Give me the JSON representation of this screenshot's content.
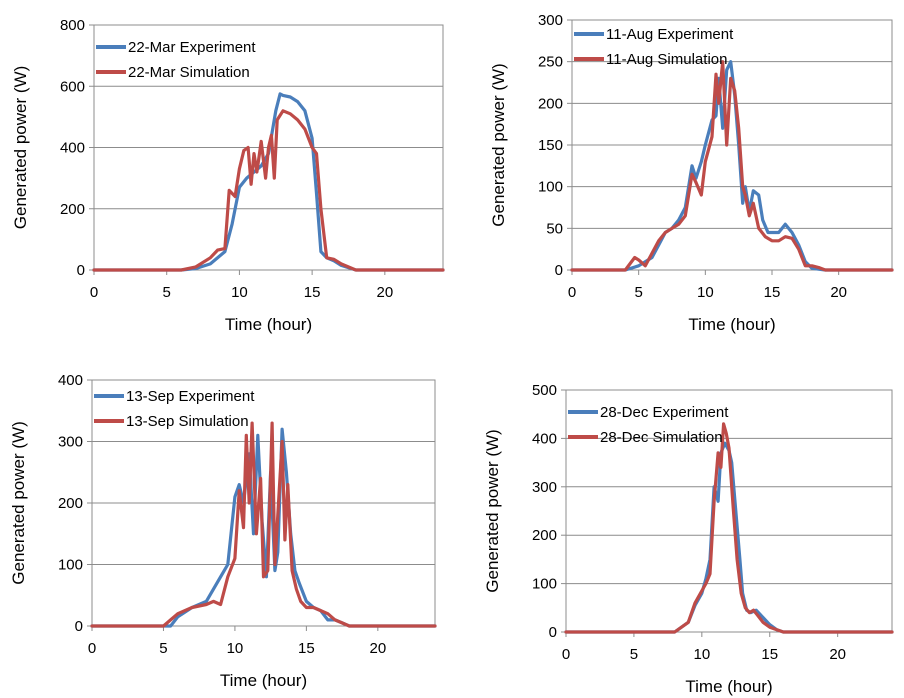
{
  "chart_data": [
    {
      "type": "line",
      "title": "",
      "xlabel": "Time (hour)",
      "ylabel": "Generated power (W)",
      "xlim": [
        0,
        24
      ],
      "ylim": [
        0,
        800
      ],
      "xticks": [
        0,
        5,
        10,
        15,
        20
      ],
      "yticks": [
        0,
        200,
        400,
        600,
        800
      ],
      "grid": "horizontal",
      "legend_position": "top-left",
      "series": [
        {
          "name": "22-Mar Experiment",
          "color": "#4a7ebb",
          "x": [
            0,
            6,
            7,
            8,
            9,
            9.5,
            10,
            10.5,
            11,
            11.5,
            12,
            12.5,
            12.8,
            13,
            13.5,
            14,
            14.5,
            15,
            15.3,
            15.6,
            16,
            16.5,
            17,
            18,
            19,
            24
          ],
          "y": [
            0,
            0,
            5,
            20,
            60,
            150,
            270,
            300,
            320,
            340,
            380,
            520,
            575,
            570,
            565,
            550,
            520,
            430,
            250,
            60,
            40,
            30,
            15,
            0,
            0,
            0
          ]
        },
        {
          "name": "22-Mar Simulation",
          "color": "#be4b48",
          "x": [
            0,
            6,
            7,
            8,
            8.5,
            9,
            9.3,
            9.7,
            10,
            10.3,
            10.6,
            10.8,
            11,
            11.2,
            11.5,
            11.8,
            12,
            12.2,
            12.4,
            12.6,
            13,
            13.5,
            14,
            14.5,
            15,
            15.3,
            15.6,
            16,
            16.5,
            17,
            18,
            19,
            24
          ],
          "y": [
            0,
            0,
            10,
            40,
            65,
            70,
            260,
            240,
            330,
            390,
            400,
            280,
            380,
            320,
            420,
            300,
            400,
            440,
            300,
            490,
            520,
            510,
            490,
            460,
            400,
            380,
            200,
            40,
            35,
            20,
            0,
            0,
            0
          ]
        }
      ]
    },
    {
      "type": "line",
      "title": "",
      "xlabel": "Time (hour)",
      "ylabel": "Generated power (W)",
      "xlim": [
        0,
        24
      ],
      "ylim": [
        0,
        300
      ],
      "xticks": [
        0,
        5,
        10,
        15,
        20
      ],
      "yticks": [
        0,
        50,
        100,
        150,
        200,
        250,
        300
      ],
      "grid": "horizontal",
      "legend_position": "top-left",
      "series": [
        {
          "name": "11-Aug Experiment",
          "color": "#4a7ebb",
          "x": [
            0,
            4,
            5,
            6,
            6.5,
            7,
            7.5,
            8,
            8.5,
            9,
            9.3,
            9.7,
            10,
            10.5,
            10.8,
            11,
            11.3,
            11.6,
            11.9,
            12.2,
            12.5,
            12.8,
            13,
            13.3,
            13.6,
            14,
            14.3,
            14.7,
            15,
            15.5,
            16,
            16.5,
            17,
            17.5,
            18,
            19,
            24
          ],
          "y": [
            0,
            0,
            5,
            15,
            30,
            45,
            50,
            60,
            75,
            125,
            110,
            130,
            150,
            180,
            185,
            230,
            170,
            240,
            250,
            210,
            150,
            80,
            100,
            70,
            95,
            90,
            60,
            45,
            45,
            45,
            55,
            45,
            30,
            10,
            2,
            0,
            0
          ]
        },
        {
          "name": "11-Aug Simulation",
          "color": "#be4b48",
          "x": [
            0,
            4,
            4.7,
            5,
            5.5,
            6,
            6.5,
            7,
            7.5,
            8,
            8.5,
            9,
            9.3,
            9.7,
            10,
            10.5,
            10.8,
            11,
            11.3,
            11.6,
            11.9,
            12.2,
            12.5,
            12.8,
            13,
            13.3,
            13.6,
            14,
            14.5,
            15,
            15.5,
            16,
            16.5,
            17,
            17.5,
            18,
            18.5,
            19,
            24
          ],
          "y": [
            0,
            0,
            15,
            12,
            5,
            20,
            35,
            45,
            50,
            55,
            65,
            115,
            105,
            90,
            130,
            160,
            235,
            200,
            250,
            150,
            230,
            215,
            170,
            100,
            90,
            65,
            80,
            50,
            40,
            35,
            35,
            40,
            38,
            25,
            5,
            5,
            3,
            0,
            0
          ]
        }
      ]
    },
    {
      "type": "line",
      "title": "",
      "xlabel": "Time (hour)",
      "ylabel": "Generated power (W)",
      "xlim": [
        0,
        24
      ],
      "ylim": [
        0,
        400
      ],
      "xticks": [
        0,
        5,
        10,
        15,
        20
      ],
      "yticks": [
        0,
        100,
        200,
        300,
        400
      ],
      "grid": "horizontal",
      "legend_position": "top-left",
      "series": [
        {
          "name": "13-Sep Experiment",
          "color": "#4a7ebb",
          "x": [
            0,
            5.5,
            6,
            7,
            8,
            9,
            9.5,
            10,
            10.3,
            10.6,
            11,
            11.3,
            11.6,
            11.9,
            12.2,
            12.5,
            12.8,
            13,
            13.3,
            13.6,
            13.9,
            14.2,
            14.5,
            15,
            15.5,
            16,
            16.5,
            17,
            17.5,
            18,
            24
          ],
          "y": [
            0,
            0,
            15,
            30,
            40,
            80,
            100,
            210,
            230,
            200,
            280,
            150,
            310,
            170,
            80,
            250,
            90,
            120,
            320,
            250,
            150,
            90,
            70,
            40,
            30,
            25,
            10,
            10,
            5,
            0,
            0
          ]
        },
        {
          "name": "13-Sep Simulation",
          "color": "#be4b48",
          "x": [
            0,
            5,
            5.5,
            6,
            7,
            8,
            8.5,
            9,
            9.5,
            10,
            10.3,
            10.6,
            10.8,
            11,
            11.2,
            11.5,
            11.8,
            12,
            12.3,
            12.6,
            12.8,
            13,
            13.3,
            13.5,
            13.7,
            14,
            14.3,
            14.6,
            15,
            15.5,
            16,
            16.5,
            17,
            17.5,
            18,
            24
          ],
          "y": [
            0,
            0,
            10,
            20,
            30,
            35,
            40,
            35,
            80,
            110,
            220,
            160,
            310,
            200,
            330,
            150,
            240,
            80,
            90,
            330,
            100,
            180,
            300,
            140,
            230,
            90,
            60,
            40,
            30,
            30,
            25,
            20,
            10,
            5,
            0,
            0
          ]
        }
      ]
    },
    {
      "type": "line",
      "title": "",
      "xlabel": "Time (hour)",
      "ylabel": "Generated power (W)",
      "xlim": [
        0,
        24
      ],
      "ylim": [
        0,
        500
      ],
      "xticks": [
        0,
        5,
        10,
        15,
        20
      ],
      "yticks": [
        0,
        100,
        200,
        300,
        400,
        500
      ],
      "grid": "horizontal",
      "legend_position": "top-left",
      "series": [
        {
          "name": "28-Dec Experiment",
          "color": "#4a7ebb",
          "x": [
            0,
            8,
            9,
            9.5,
            10,
            10.3,
            10.6,
            10.9,
            11.2,
            11.4,
            11.7,
            12,
            12.2,
            12.5,
            12.8,
            13,
            13.3,
            13.6,
            14,
            14.5,
            15,
            15.5,
            16,
            24
          ],
          "y": [
            0,
            0,
            20,
            55,
            80,
            110,
            150,
            300,
            270,
            370,
            390,
            375,
            350,
            250,
            150,
            80,
            45,
            40,
            45,
            30,
            15,
            5,
            0,
            0
          ]
        },
        {
          "name": "28-Dec Simulation",
          "color": "#be4b48",
          "x": [
            0,
            8,
            9,
            9.5,
            10,
            10.3,
            10.6,
            10.9,
            11.2,
            11.4,
            11.6,
            11.8,
            12,
            12.3,
            12.6,
            12.9,
            13.2,
            13.5,
            13.8,
            14.1,
            14.5,
            15,
            15.5,
            16,
            24
          ],
          "y": [
            0,
            0,
            20,
            60,
            85,
            100,
            120,
            270,
            370,
            340,
            430,
            410,
            380,
            260,
            150,
            80,
            50,
            40,
            45,
            35,
            20,
            10,
            5,
            0,
            0
          ]
        }
      ]
    }
  ]
}
